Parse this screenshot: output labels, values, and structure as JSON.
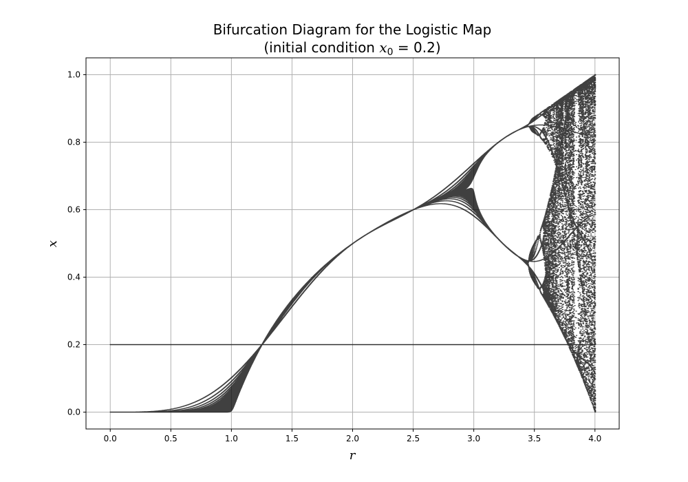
{
  "chart_data": {
    "type": "scatter",
    "title_line1": "Bifurcation Diagram for the Logistic Map",
    "title_line2_prefix": "(initial condition ",
    "title_var": "x",
    "title_sub": "0",
    "title_eq": " = 0.2)",
    "xlabel": "r",
    "ylabel": "x",
    "xlim": [
      -0.2,
      4.2
    ],
    "ylim": [
      -0.05,
      1.05
    ],
    "xticks": [
      0.0,
      0.5,
      1.0,
      1.5,
      2.0,
      2.5,
      3.0,
      3.5,
      4.0
    ],
    "xtick_labels": [
      "0.0",
      "0.5",
      "1.0",
      "1.5",
      "2.0",
      "2.5",
      "3.0",
      "3.5",
      "4.0"
    ],
    "yticks": [
      0.0,
      0.2,
      0.4,
      0.6,
      0.8,
      1.0
    ],
    "ytick_labels": [
      "0.0",
      "0.2",
      "0.4",
      "0.6",
      "0.8",
      "1.0"
    ],
    "grid": true,
    "marker_color": "#000000",
    "initial_condition": 0.2,
    "r_range": [
      0.0,
      4.0
    ]
  }
}
